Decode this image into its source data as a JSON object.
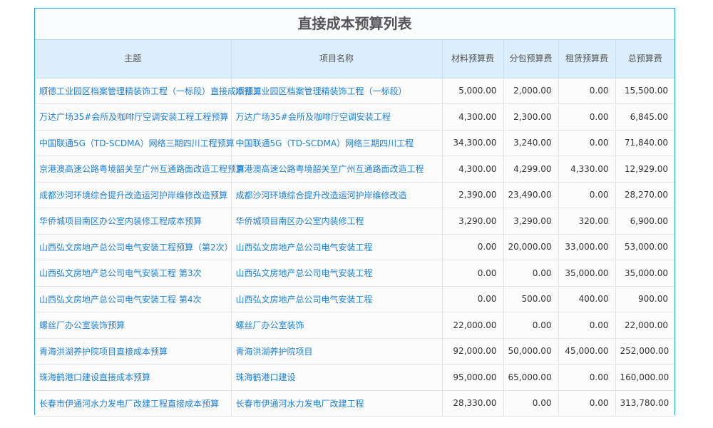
{
  "title": "直接成本预算列表",
  "headers": [
    "主题",
    "项目名称",
    "材料预算费",
    "分包预算费",
    "租赁预算费",
    "总预算费"
  ],
  "rows": [
    [
      "顺德工业园区档案管理精装饰工程（一标段）直接成本预算",
      "顺德工业园区档案管理精装饰工程（一标段）",
      "5,000.00",
      "2,000.00",
      "0.00",
      "15,500.00"
    ],
    [
      "万达广场35#会所及咖啡厅空调安装工程工程预算",
      "万达广场35#会所及咖啡厅空调安装工程",
      "4,300.00",
      "2,300.00",
      "0.00",
      "6,845.00"
    ],
    [
      "中国联通5G（TD-SCDMA）网络三期四川工程预算",
      "中国联通5G（TD-SCDMA）网络三期四川工程",
      "34,300.00",
      "3,240.00",
      "0.00",
      "71,840.00"
    ],
    [
      "京港澳高速公路粤境韶关至广州互通路面改造工程预算",
      "京港澳高速公路粤境韶关至广州互通路面改造工程",
      "4,300.00",
      "4,299.00",
      "4,330.00",
      "12,929.00"
    ],
    [
      "成都沙河环境综合提升改造运河护岸维修改造预算",
      "成都沙河环境综合提升改造运河护岸维修改造",
      "2,390.00",
      "23,490.00",
      "0.00",
      "28,270.00"
    ],
    [
      "华侨城项目南区办公室内装修工程成本预算",
      "华侨城项目南区办公室内装修工程",
      "3,290.00",
      "3,290.00",
      "320.00",
      "6,900.00"
    ],
    [
      "山西弘文房地产总公司电气安装工程预算（第2次）",
      "山西弘文房地产总公司电气安装工程",
      "0.00",
      "20,000.00",
      "33,000.00",
      "53,000.00"
    ],
    [
      "山西弘文房地产总公司电气安装工程 第3次",
      "山西弘文房地产总公司电气安装工程",
      "0.00",
      "0.00",
      "35,000.00",
      "35,000.00"
    ],
    [
      "山西弘文房地产总公司电气安装工程 第4次",
      "山西弘文房地产总公司电气安装工程",
      "0.00",
      "500.00",
      "400.00",
      "900.00"
    ],
    [
      "螺丝厂办公室装饰预算",
      "螺丝厂办公室装饰",
      "22,000.00",
      "0.00",
      "0.00",
      "22,000.00"
    ],
    [
      "青海洪湖养护院项目直接成本预算",
      "青海洪湖养护院项目",
      "92,000.00",
      "50,000.00",
      "45,000.00",
      "252,000.00"
    ],
    [
      "珠海鹤港口建设直接成本预算",
      "珠海鹤港口建设",
      "95,000.00",
      "65,000.00",
      "0.00",
      "160,000.00"
    ],
    [
      "长春市伊通河水力发电厂改建工程直接成本预算",
      "长春市伊通河水力发电厂改建工程",
      "28,330.00",
      "0.00",
      "0.00",
      "313,780.00"
    ]
  ]
}
